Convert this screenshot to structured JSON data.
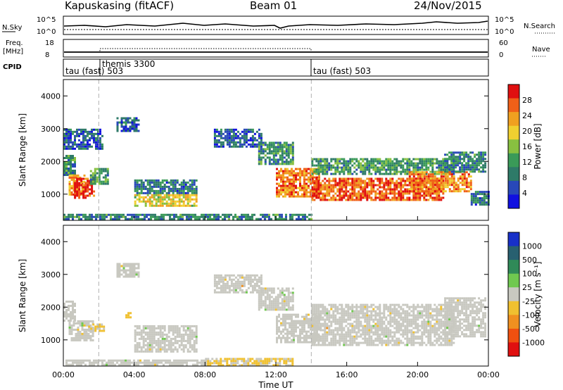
{
  "header": {
    "station": "Kapuskasing (fitACF)",
    "beam": "Beam 01",
    "date": "24/Nov/2015"
  },
  "summary_panels": {
    "nsky": {
      "left_label": "N.Sky",
      "left_ticks": [
        "10^5",
        "10^0"
      ],
      "right_label": "N.Search",
      "right_ticks": [
        "10^5",
        "10^0"
      ]
    },
    "freq": {
      "left_label_1": "Freq.",
      "left_label_2": "[MHz]",
      "left_ticks": [
        "18",
        "8"
      ],
      "right_label": "Nave",
      "right_ticks": [
        "60",
        "0"
      ]
    },
    "cpid": {
      "label": "CPID",
      "segments": [
        {
          "name": "tau (fast) 503",
          "start_h": 0,
          "end_h": 14
        },
        {
          "name": "themis 3300",
          "start_h": 2,
          "end_h": 14
        },
        {
          "name": "tau (fast) 503",
          "start_h": 14,
          "end_h": 24
        }
      ]
    }
  },
  "colors": {
    "power_scale": [
      "#1010e0",
      "#2848b8",
      "#2e7a68",
      "#3a9a58",
      "#88c040",
      "#f0d030",
      "#f0a020",
      "#f06018",
      "#e01010"
    ],
    "velocity_scale": [
      "#1830c8",
      "#286070",
      "#308a58",
      "#70c850",
      "#c8c8c0",
      "#f0c030",
      "#f09020",
      "#f05010",
      "#e01010"
    ],
    "dashed_marker": "#b0b0b0"
  },
  "colorbars": {
    "power": {
      "label": "Power [dB]",
      "ticks": [
        "28",
        "24",
        "20",
        "16",
        "12",
        "8",
        "4"
      ]
    },
    "velocity": {
      "label": "Velocity [m s⁻¹]",
      "ticks": [
        "1000",
        "500",
        "100",
        "25",
        "-25",
        "-100",
        "-500",
        "-1000"
      ]
    }
  },
  "axes": {
    "y_label": "Slant Range [km]",
    "y_ticks": [
      "1000",
      "2000",
      "3000",
      "4000"
    ],
    "x_label": "Time UT",
    "x_ticks": [
      "00:00",
      "04:00",
      "08:00",
      "12:00",
      "16:00",
      "20:00",
      "00:00"
    ]
  },
  "chart_data": [
    {
      "type": "heatmap",
      "title": "Power [dB]",
      "xlabel": "Time UT",
      "ylabel": "Slant Range [km]",
      "xlim": [
        0,
        24
      ],
      "ylim": [
        200,
        4500
      ],
      "zlim": [
        0,
        30
      ],
      "markers_h": [
        2,
        14
      ],
      "regions": [
        {
          "t0": 0.0,
          "t1": 0.6,
          "r0": 1600,
          "r1": 2200,
          "v": 10
        },
        {
          "t0": 0.3,
          "t1": 1.2,
          "r0": 1000,
          "r1": 1600,
          "v": 22
        },
        {
          "t0": 0.6,
          "t1": 1.7,
          "r0": 900,
          "r1": 1500,
          "v": 27
        },
        {
          "t0": 1.5,
          "t1": 2.5,
          "r0": 1300,
          "r1": 1800,
          "v": 11
        },
        {
          "t0": 0.0,
          "t1": 2.2,
          "r0": 2400,
          "r1": 3000,
          "v": 6
        },
        {
          "t0": 3.0,
          "t1": 4.3,
          "r0": 2900,
          "r1": 3350,
          "v": 6
        },
        {
          "t0": 4.0,
          "t1": 7.5,
          "r0": 1050,
          "r1": 1450,
          "v": 8
        },
        {
          "t0": 4.0,
          "t1": 7.5,
          "r0": 650,
          "r1": 1000,
          "v": 18
        },
        {
          "t0": 8.5,
          "t1": 11.2,
          "r0": 2450,
          "r1": 3000,
          "v": 6
        },
        {
          "t0": 11.0,
          "t1": 13.0,
          "r0": 1900,
          "r1": 2600,
          "v": 10
        },
        {
          "t0": 12.0,
          "t1": 14.5,
          "r0": 900,
          "r1": 1800,
          "v": 24
        },
        {
          "t0": 14.0,
          "t1": 22.0,
          "r0": 1600,
          "r1": 2100,
          "v": 11
        },
        {
          "t0": 14.0,
          "t1": 21.5,
          "r0": 850,
          "r1": 1500,
          "v": 25
        },
        {
          "t0": 19.5,
          "t1": 23.0,
          "r0": 1100,
          "r1": 1700,
          "v": 23
        },
        {
          "t0": 21.5,
          "t1": 23.8,
          "r0": 1700,
          "r1": 2300,
          "v": 9
        },
        {
          "t0": 23.0,
          "t1": 24.0,
          "r0": 700,
          "r1": 1100,
          "v": 8
        },
        {
          "t0": 0.0,
          "t1": 14.0,
          "r0": 250,
          "r1": 400,
          "v": 9
        }
      ]
    },
    {
      "type": "heatmap",
      "title": "Velocity [m s⁻¹]",
      "xlabel": "Time UT",
      "ylabel": "Slant Range [km]",
      "xlim": [
        0,
        24
      ],
      "ylim": [
        200,
        4500
      ],
      "zlim": [
        -1000,
        1000
      ],
      "markers_h": [
        2,
        14
      ],
      "regions": [
        {
          "t0": 0.0,
          "t1": 0.6,
          "r0": 1600,
          "r1": 2200,
          "v": 0
        },
        {
          "t0": 0.3,
          "t1": 1.7,
          "r0": 1000,
          "r1": 1600,
          "v": 0
        },
        {
          "t0": 1.4,
          "t1": 2.3,
          "r0": 1250,
          "r1": 1500,
          "v": -120
        },
        {
          "t0": 3.0,
          "t1": 4.3,
          "r0": 2900,
          "r1": 3350,
          "v": 0
        },
        {
          "t0": 4.0,
          "t1": 7.5,
          "r0": 650,
          "r1": 1450,
          "v": 0
        },
        {
          "t0": 8.5,
          "t1": 11.2,
          "r0": 2450,
          "r1": 3000,
          "v": 0
        },
        {
          "t0": 11.0,
          "t1": 13.0,
          "r0": 1900,
          "r1": 2600,
          "v": 0
        },
        {
          "t0": 12.0,
          "t1": 14.5,
          "r0": 900,
          "r1": 1800,
          "v": 0
        },
        {
          "t0": 14.0,
          "t1": 22.0,
          "r0": 850,
          "r1": 2100,
          "v": 0
        },
        {
          "t0": 21.5,
          "t1": 23.8,
          "r0": 1100,
          "r1": 2300,
          "v": 0
        },
        {
          "t0": 3.5,
          "t1": 3.8,
          "r0": 1700,
          "r1": 1850,
          "v": -150
        },
        {
          "t0": 8.0,
          "t1": 13.0,
          "r0": 250,
          "r1": 450,
          "v": -120
        },
        {
          "t0": 0.0,
          "t1": 8.0,
          "r0": 250,
          "r1": 400,
          "v": 0
        }
      ]
    }
  ]
}
